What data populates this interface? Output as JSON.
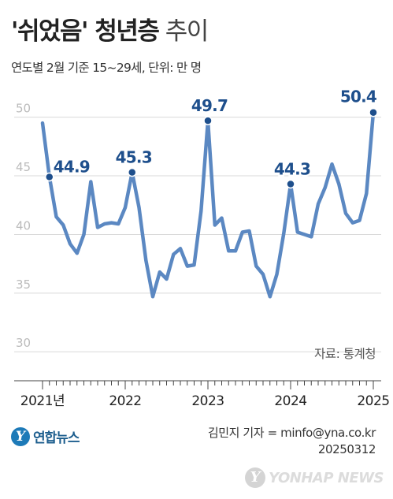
{
  "header": {
    "title_bold": "'쉬었음' 청년층",
    "title_light": "추이",
    "subtitle": "연도별 2월 기준 15~29세, 단위: 만 명"
  },
  "source": "자료: 통계청",
  "footer": {
    "logo_mark": "Y",
    "logo_text": "연합뉴스",
    "credit_line1": "김민지 기자 = minfo@yna.co.kr",
    "credit_line2": "20250312",
    "watermark": "YONHAP NEWS"
  },
  "colors": {
    "line": "#5b88c2",
    "highlight": "#1e4f8c",
    "grid": "#d9d9d9",
    "axis": "#444444"
  },
  "chart_data": {
    "type": "line",
    "title": "'쉬었음' 청년층 추이",
    "ylim": [
      28,
      53
    ],
    "y_ticks": [
      50,
      45,
      40,
      35,
      30
    ],
    "x_tick_labels": [
      "2021년",
      "2022",
      "2023",
      "2024",
      "2025"
    ],
    "x_tick_month_index": [
      0,
      12,
      24,
      36,
      48
    ],
    "series": [
      {
        "values": [
          49.5,
          44.9,
          41.5,
          40.8,
          39.2,
          38.4,
          40.0,
          44.5,
          40.6,
          40.9,
          41.0,
          40.9,
          42.3,
          45.3,
          42.3,
          37.8,
          34.7,
          36.8,
          36.2,
          38.3,
          38.8,
          37.3,
          37.4,
          42.0,
          49.7,
          40.8,
          41.4,
          38.6,
          38.6,
          40.2,
          40.3,
          37.3,
          36.6,
          34.7,
          36.6,
          40.1,
          44.3,
          40.2,
          40.0,
          39.8,
          42.6,
          44.0,
          46.0,
          44.3,
          41.8,
          41.0,
          41.2,
          43.5,
          50.4
        ]
      }
    ],
    "highlights": [
      {
        "index": 1,
        "label": "44.9"
      },
      {
        "index": 13,
        "label": "45.3"
      },
      {
        "index": 24,
        "label": "49.7"
      },
      {
        "index": 36,
        "label": "44.3"
      },
      {
        "index": 48,
        "label": "50.4"
      }
    ]
  }
}
